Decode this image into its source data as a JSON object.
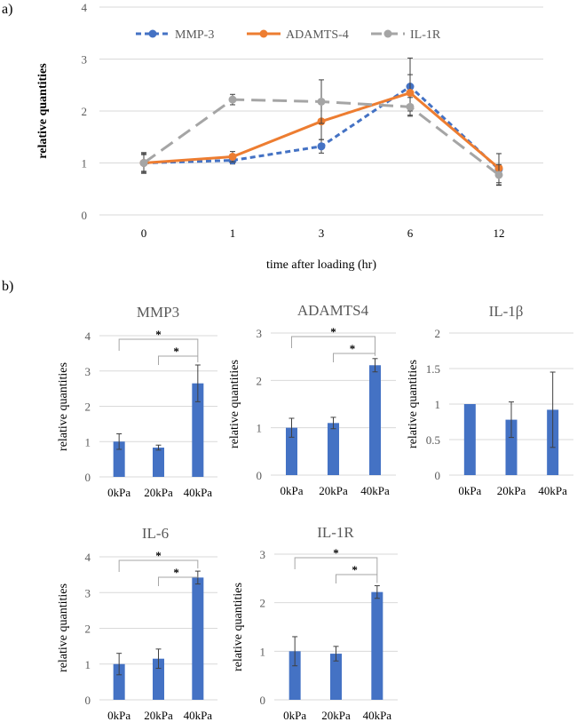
{
  "panel_labels": {
    "a": "a)",
    "b": "b)"
  },
  "colors": {
    "mmp3": "#4472c4",
    "adamts4": "#ed7d31",
    "il1r": "#a5a5a5",
    "bar": "#4472c4"
  },
  "chart_data": [
    {
      "type": "line",
      "title": "",
      "xlabel": "time after loading (hr)",
      "ylabel": "relative quantities",
      "categories": [
        "0",
        "1",
        "3",
        "6",
        "12"
      ],
      "ylim": [
        0,
        4
      ],
      "yticks": [
        "0",
        "1",
        "2",
        "3",
        "4"
      ],
      "legend_position": "top",
      "series": [
        {
          "name": "MMP-3",
          "values": [
            1.0,
            1.05,
            1.32,
            2.47,
            0.88
          ],
          "errors": [
            0.2,
            0.07,
            0.13,
            0.55,
            0.3
          ],
          "color": "#4472c4",
          "dash": "dashed"
        },
        {
          "name": "ADAMTS-4",
          "values": [
            1.0,
            1.12,
            1.8,
            2.35,
            0.9
          ],
          "errors": [
            0.18,
            0.1,
            0.35,
            0.35,
            0.28
          ],
          "color": "#ed7d31",
          "dash": "solid"
        },
        {
          "name": "IL-1R",
          "values": [
            1.0,
            2.22,
            2.18,
            2.08,
            0.77
          ],
          "errors": [
            0.16,
            0.1,
            0.42,
            0.18,
            0.2
          ],
          "color": "#a5a5a5",
          "dash": "longdash"
        }
      ]
    },
    {
      "type": "bar",
      "title": "MMP3",
      "ylabel": "relative quantities",
      "categories": [
        "0kPa",
        "20kPa",
        "40kPa"
      ],
      "values": [
        1.0,
        0.83,
        2.65
      ],
      "errors": [
        0.22,
        0.07,
        0.52
      ],
      "ylim": [
        0,
        4
      ],
      "yticks": [
        "0",
        "1",
        "2",
        "3",
        "4"
      ],
      "significance": [
        "*",
        "*"
      ]
    },
    {
      "type": "bar",
      "title": "ADAMTS4",
      "ylabel": "relative quantities",
      "categories": [
        "0kPa",
        "20kPa",
        "40kPa"
      ],
      "values": [
        1.0,
        1.1,
        2.32
      ],
      "errors": [
        0.2,
        0.12,
        0.14
      ],
      "ylim": [
        0,
        3
      ],
      "yticks": [
        "0",
        "1",
        "2",
        "3"
      ],
      "significance": [
        "*",
        "*"
      ]
    },
    {
      "type": "bar",
      "title": "IL-1β",
      "ylabel": "relative quantities",
      "categories": [
        "0kPa",
        "20kPa",
        "40kPa"
      ],
      "values": [
        1.0,
        0.78,
        0.92
      ],
      "errors": [
        0.0,
        0.25,
        0.53
      ],
      "ylim": [
        0,
        2
      ],
      "yticks": [
        "0",
        "0.5",
        "1",
        "1.5",
        "2"
      ],
      "significance": []
    },
    {
      "type": "bar",
      "title": "IL-6",
      "ylabel": "relative quantities",
      "categories": [
        "0kPa",
        "20kPa",
        "40kPa"
      ],
      "values": [
        1.0,
        1.15,
        3.42
      ],
      "errors": [
        0.3,
        0.27,
        0.18
      ],
      "ylim": [
        0,
        4
      ],
      "yticks": [
        "0",
        "1",
        "2",
        "3",
        "4"
      ],
      "significance": [
        "*",
        "*"
      ]
    },
    {
      "type": "bar",
      "title": "IL-1R",
      "ylabel": "relative quantities",
      "categories": [
        "0kPa",
        "20kPa",
        "40kPa"
      ],
      "values": [
        1.0,
        0.95,
        2.22
      ],
      "errors": [
        0.3,
        0.15,
        0.13
      ],
      "ylim": [
        0,
        3
      ],
      "yticks": [
        "0",
        "1",
        "2",
        "3"
      ],
      "significance": [
        "*",
        "*"
      ]
    }
  ]
}
